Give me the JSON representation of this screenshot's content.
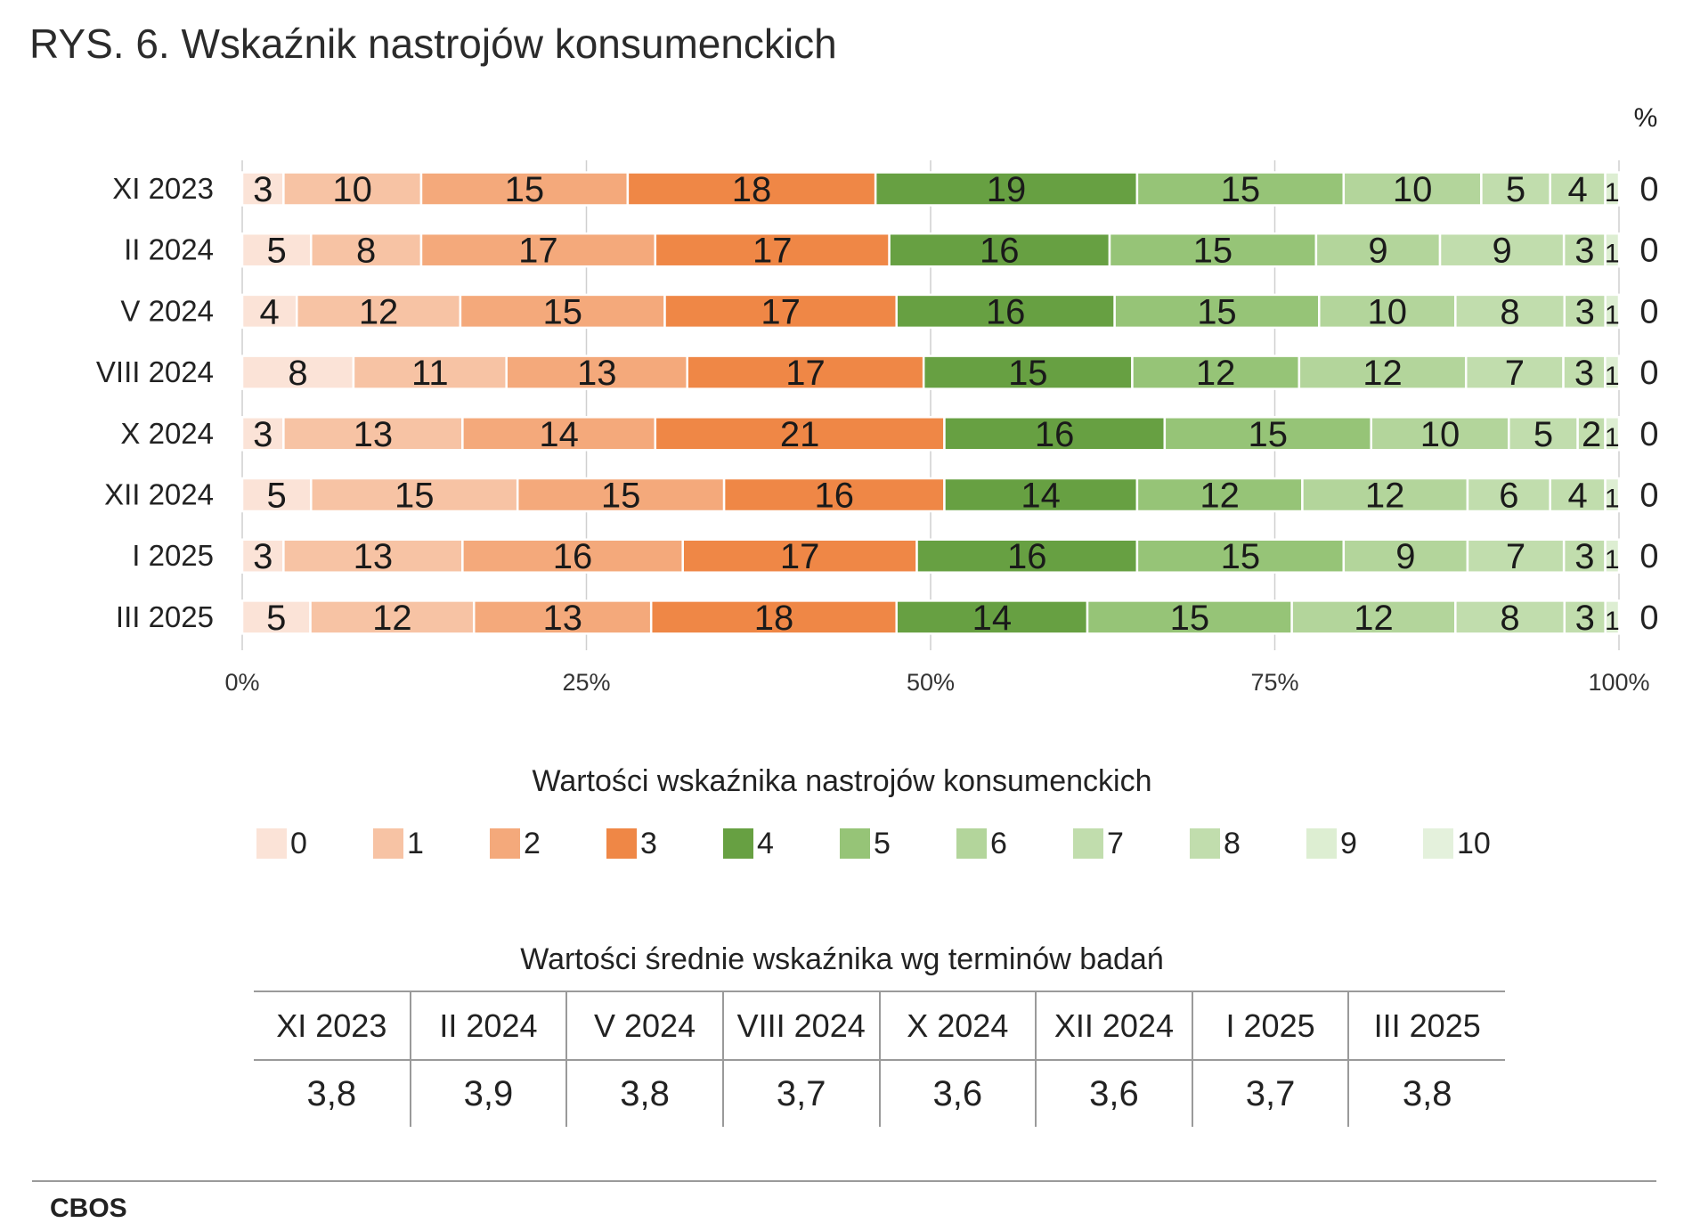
{
  "title": "RYS. 6. Wskaźnik nastrojów konsumenckich",
  "chart_data": {
    "type": "bar",
    "orientation": "horizontal",
    "stacked": true,
    "normalized_to_percent": true,
    "categories": [
      "XI 2023",
      "II 2024",
      "V 2024",
      "VIII 2024",
      "X 2024",
      "XII 2024",
      "I 2025",
      "III 2025"
    ],
    "series": [
      {
        "name": "0",
        "color": "#fbe3d7",
        "values": [
          3,
          5,
          4,
          8,
          3,
          5,
          3,
          5
        ]
      },
      {
        "name": "1",
        "color": "#f7c3a4",
        "values": [
          10,
          8,
          12,
          11,
          13,
          15,
          13,
          12
        ]
      },
      {
        "name": "2",
        "color": "#f4a97b",
        "values": [
          15,
          17,
          15,
          13,
          14,
          15,
          16,
          13
        ]
      },
      {
        "name": "3",
        "color": "#ef8746",
        "values": [
          18,
          17,
          17,
          17,
          21,
          16,
          17,
          18
        ]
      },
      {
        "name": "4",
        "color": "#67a042",
        "values": [
          19,
          16,
          16,
          15,
          16,
          14,
          16,
          14
        ]
      },
      {
        "name": "5",
        "color": "#96c477",
        "values": [
          15,
          15,
          15,
          12,
          15,
          12,
          15,
          15
        ]
      },
      {
        "name": "6",
        "color": "#b3d59b",
        "values": [
          10,
          9,
          10,
          12,
          10,
          12,
          9,
          12
        ]
      },
      {
        "name": "7",
        "color": "#c1ddad",
        "values": [
          5,
          9,
          8,
          7,
          5,
          6,
          7,
          8
        ]
      },
      {
        "name": "8",
        "color": "#c1ddad",
        "values": [
          4,
          3,
          3,
          3,
          2,
          4,
          3,
          3
        ]
      },
      {
        "name": "9",
        "color": "#ddeed2",
        "values": [
          1,
          1,
          1,
          1,
          1,
          1,
          1,
          1
        ]
      },
      {
        "name": "10",
        "color": "#e4f1dc",
        "values": [
          0,
          0,
          0,
          0,
          0,
          0,
          0,
          0
        ]
      }
    ],
    "xlim": [
      0,
      100
    ],
    "xticks": [
      "0%",
      "25%",
      "50%",
      "75%",
      "100%"
    ],
    "unit_label": "%",
    "grid": true,
    "legend_title": "Wartości wskaźnika nastrojów konsumenckich",
    "legend_position": "bottom"
  },
  "means": {
    "title": "Wartości średnie wskaźnika wg terminów badań",
    "periods": [
      "XI 2023",
      "II 2024",
      "V 2024",
      "VIII 2024",
      "X 2024",
      "XII 2024",
      "I 2025",
      "III 2025"
    ],
    "values": [
      "3,8",
      "3,9",
      "3,8",
      "3,7",
      "3,6",
      "3,6",
      "3,7",
      "3,8"
    ]
  },
  "source": "CBOS"
}
